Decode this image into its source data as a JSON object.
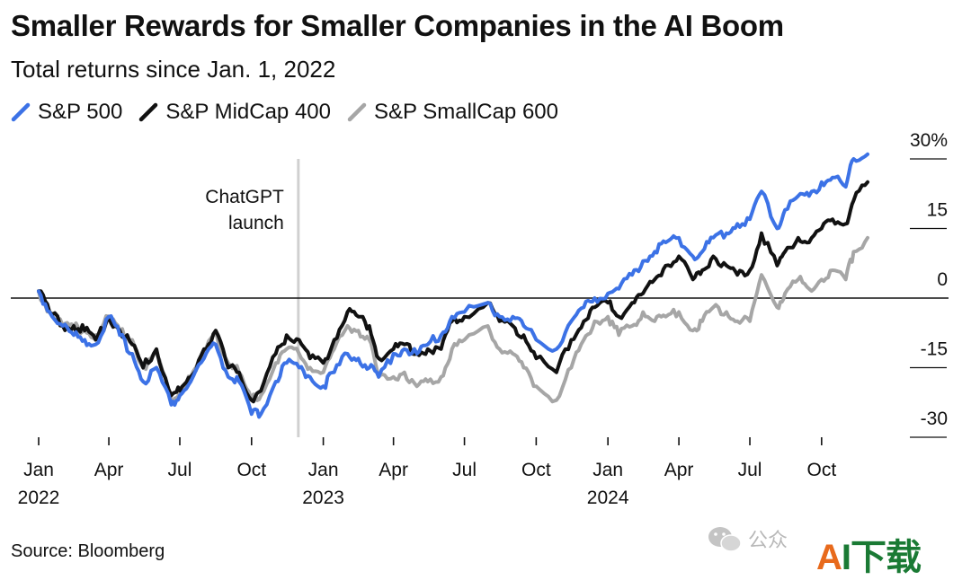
{
  "title": "Smaller Rewards for Smaller Companies in the AI Boom",
  "subtitle": "Total returns since Jan. 1, 2022",
  "source": "Source: Bloomberg",
  "watermark": {
    "account_text": "公众",
    "brand_a": "A",
    "brand_rest": "I下载"
  },
  "colors": {
    "sp500": "#3c72e6",
    "midcap": "#111111",
    "smallcap": "#a6a6a6",
    "ref": "#d0d0d0"
  },
  "chart_data": {
    "type": "line",
    "title": "Smaller Rewards for Smaller Companies in the AI Boom",
    "subtitle": "Total returns since Jan. 1, 2022",
    "ylabel": "",
    "y_unit": "%",
    "ylim": [
      -30,
      30
    ],
    "y_ticks": [
      30,
      15,
      0,
      -15,
      -30
    ],
    "y_tick_labels": [
      "30%",
      "15",
      "0",
      "-15",
      "-30"
    ],
    "x_range": [
      "2022-01-01",
      "2024-11-29"
    ],
    "x_ticks": [
      {
        "date": "2022-01-01",
        "label": "Jan",
        "year": "2022"
      },
      {
        "date": "2022-04-01",
        "label": "Apr",
        "year": ""
      },
      {
        "date": "2022-07-01",
        "label": "Jul",
        "year": ""
      },
      {
        "date": "2022-10-01",
        "label": "Oct",
        "year": ""
      },
      {
        "date": "2023-01-01",
        "label": "Jan",
        "year": "2023"
      },
      {
        "date": "2023-04-01",
        "label": "Apr",
        "year": ""
      },
      {
        "date": "2023-07-01",
        "label": "Jul",
        "year": ""
      },
      {
        "date": "2023-10-01",
        "label": "Oct",
        "year": ""
      },
      {
        "date": "2024-01-01",
        "label": "Jan",
        "year": "2024"
      },
      {
        "date": "2024-04-01",
        "label": "Apr",
        "year": ""
      },
      {
        "date": "2024-07-01",
        "label": "Jul",
        "year": ""
      },
      {
        "date": "2024-10-01",
        "label": "Oct",
        "year": ""
      }
    ],
    "annotations": [
      {
        "date": "2022-11-30",
        "text_lines": [
          "ChatGPT",
          "launch"
        ]
      }
    ],
    "legend_position": "top-left",
    "grid": false,
    "series": [
      {
        "name": "S&P 500",
        "color_key": "sp500",
        "points": [
          [
            "2022-01-01",
            1.5
          ],
          [
            "2022-01-15",
            -3
          ],
          [
            "2022-02-01",
            -6
          ],
          [
            "2022-02-15",
            -8
          ],
          [
            "2022-03-01",
            -9
          ],
          [
            "2022-03-15",
            -10
          ],
          [
            "2022-04-01",
            -4
          ],
          [
            "2022-04-15",
            -8
          ],
          [
            "2022-05-01",
            -12
          ],
          [
            "2022-05-15",
            -18
          ],
          [
            "2022-06-01",
            -15
          ],
          [
            "2022-06-20",
            -23
          ],
          [
            "2022-07-01",
            -21
          ],
          [
            "2022-07-15",
            -18
          ],
          [
            "2022-08-01",
            -13
          ],
          [
            "2022-08-16",
            -10
          ],
          [
            "2022-09-01",
            -17
          ],
          [
            "2022-09-15",
            -18
          ],
          [
            "2022-10-01",
            -25
          ],
          [
            "2022-10-13",
            -25
          ],
          [
            "2022-11-01",
            -18
          ],
          [
            "2022-11-15",
            -14
          ],
          [
            "2022-12-01",
            -15
          ],
          [
            "2022-12-15",
            -17
          ],
          [
            "2023-01-01",
            -19
          ],
          [
            "2023-01-15",
            -16
          ],
          [
            "2023-02-01",
            -12
          ],
          [
            "2023-02-15",
            -13
          ],
          [
            "2023-03-01",
            -15
          ],
          [
            "2023-03-13",
            -17
          ],
          [
            "2023-04-01",
            -12
          ],
          [
            "2023-04-15",
            -11
          ],
          [
            "2023-05-01",
            -12
          ],
          [
            "2023-05-15",
            -10
          ],
          [
            "2023-06-01",
            -8
          ],
          [
            "2023-06-15",
            -4
          ],
          [
            "2023-07-01",
            -3
          ],
          [
            "2023-07-31",
            -1
          ],
          [
            "2023-08-15",
            -4
          ],
          [
            "2023-09-01",
            -4
          ],
          [
            "2023-09-15",
            -6
          ],
          [
            "2023-10-01",
            -9
          ],
          [
            "2023-10-27",
            -11
          ],
          [
            "2023-11-15",
            -5
          ],
          [
            "2023-12-01",
            -2
          ],
          [
            "2023-12-15",
            0
          ],
          [
            "2024-01-01",
            1
          ],
          [
            "2024-01-15",
            2
          ],
          [
            "2024-02-01",
            5
          ],
          [
            "2024-02-15",
            8
          ],
          [
            "2024-03-01",
            10
          ],
          [
            "2024-03-15",
            12
          ],
          [
            "2024-04-01",
            13
          ],
          [
            "2024-04-19",
            9
          ],
          [
            "2024-05-01",
            10
          ],
          [
            "2024-05-15",
            13
          ],
          [
            "2024-06-01",
            14
          ],
          [
            "2024-06-15",
            16
          ],
          [
            "2024-07-01",
            17
          ],
          [
            "2024-07-16",
            23
          ],
          [
            "2024-08-05",
            15
          ],
          [
            "2024-08-15",
            19
          ],
          [
            "2024-09-01",
            22
          ],
          [
            "2024-09-15",
            22
          ],
          [
            "2024-10-01",
            25
          ],
          [
            "2024-10-15",
            26
          ],
          [
            "2024-11-01",
            24
          ],
          [
            "2024-11-11",
            30
          ],
          [
            "2024-11-29",
            31
          ]
        ]
      },
      {
        "name": "S&P MidCap 400",
        "color_key": "midcap",
        "points": [
          [
            "2022-01-01",
            1.5
          ],
          [
            "2022-01-15",
            -3
          ],
          [
            "2022-02-01",
            -6
          ],
          [
            "2022-02-15",
            -6
          ],
          [
            "2022-03-01",
            -7
          ],
          [
            "2022-03-15",
            -9
          ],
          [
            "2022-04-01",
            -4
          ],
          [
            "2022-04-15",
            -7
          ],
          [
            "2022-05-01",
            -10
          ],
          [
            "2022-05-15",
            -15
          ],
          [
            "2022-06-01",
            -11
          ],
          [
            "2022-06-20",
            -21
          ],
          [
            "2022-07-01",
            -20
          ],
          [
            "2022-07-15",
            -17
          ],
          [
            "2022-08-01",
            -11
          ],
          [
            "2022-08-16",
            -7
          ],
          [
            "2022-09-01",
            -15
          ],
          [
            "2022-09-15",
            -16
          ],
          [
            "2022-10-01",
            -22
          ],
          [
            "2022-10-13",
            -20
          ],
          [
            "2022-11-01",
            -12
          ],
          [
            "2022-11-15",
            -8
          ],
          [
            "2022-12-01",
            -9
          ],
          [
            "2022-12-15",
            -13
          ],
          [
            "2023-01-01",
            -14
          ],
          [
            "2023-01-15",
            -9
          ],
          [
            "2023-02-01",
            -3
          ],
          [
            "2023-02-15",
            -4
          ],
          [
            "2023-03-01",
            -6
          ],
          [
            "2023-03-13",
            -13
          ],
          [
            "2023-04-01",
            -11
          ],
          [
            "2023-04-15",
            -10
          ],
          [
            "2023-05-01",
            -12
          ],
          [
            "2023-05-15",
            -11
          ],
          [
            "2023-06-01",
            -11
          ],
          [
            "2023-06-15",
            -5
          ],
          [
            "2023-07-01",
            -4
          ],
          [
            "2023-07-31",
            -1
          ],
          [
            "2023-08-15",
            -5
          ],
          [
            "2023-09-01",
            -6
          ],
          [
            "2023-09-15",
            -8
          ],
          [
            "2023-10-01",
            -13
          ],
          [
            "2023-10-27",
            -16
          ],
          [
            "2023-11-15",
            -9
          ],
          [
            "2023-12-01",
            -5
          ],
          [
            "2023-12-15",
            -2
          ],
          [
            "2024-01-01",
            -1
          ],
          [
            "2024-01-15",
            -4
          ],
          [
            "2024-02-01",
            -1
          ],
          [
            "2024-02-15",
            1
          ],
          [
            "2024-03-01",
            4
          ],
          [
            "2024-03-15",
            7
          ],
          [
            "2024-04-01",
            9
          ],
          [
            "2024-04-19",
            4
          ],
          [
            "2024-05-01",
            6
          ],
          [
            "2024-05-15",
            9
          ],
          [
            "2024-06-01",
            7
          ],
          [
            "2024-06-15",
            5
          ],
          [
            "2024-07-01",
            6
          ],
          [
            "2024-07-16",
            14
          ],
          [
            "2024-08-05",
            7
          ],
          [
            "2024-08-15",
            10
          ],
          [
            "2024-09-01",
            13
          ],
          [
            "2024-09-15",
            12
          ],
          [
            "2024-10-01",
            15
          ],
          [
            "2024-10-15",
            17
          ],
          [
            "2024-11-01",
            16
          ],
          [
            "2024-11-11",
            21
          ],
          [
            "2024-11-29",
            25
          ]
        ]
      },
      {
        "name": "S&P SmallCap 600",
        "color_key": "smallcap",
        "points": [
          [
            "2022-01-01",
            1.5
          ],
          [
            "2022-01-15",
            -3
          ],
          [
            "2022-02-01",
            -6
          ],
          [
            "2022-02-15",
            -6
          ],
          [
            "2022-03-01",
            -7
          ],
          [
            "2022-03-15",
            -8
          ],
          [
            "2022-04-01",
            -4
          ],
          [
            "2022-04-15",
            -7
          ],
          [
            "2022-05-01",
            -9
          ],
          [
            "2022-05-15",
            -15
          ],
          [
            "2022-06-01",
            -12
          ],
          [
            "2022-06-20",
            -22
          ],
          [
            "2022-07-01",
            -20
          ],
          [
            "2022-07-15",
            -17
          ],
          [
            "2022-08-01",
            -12
          ],
          [
            "2022-08-16",
            -7
          ],
          [
            "2022-09-01",
            -14
          ],
          [
            "2022-09-15",
            -16
          ],
          [
            "2022-10-01",
            -22
          ],
          [
            "2022-10-13",
            -21
          ],
          [
            "2022-11-01",
            -14
          ],
          [
            "2022-11-15",
            -11
          ],
          [
            "2022-12-01",
            -12
          ],
          [
            "2022-12-15",
            -15
          ],
          [
            "2023-01-01",
            -16
          ],
          [
            "2023-01-15",
            -11
          ],
          [
            "2023-02-01",
            -6
          ],
          [
            "2023-02-15",
            -7
          ],
          [
            "2023-03-01",
            -9
          ],
          [
            "2023-03-13",
            -17
          ],
          [
            "2023-04-01",
            -17
          ],
          [
            "2023-04-15",
            -16
          ],
          [
            "2023-05-01",
            -19
          ],
          [
            "2023-05-15",
            -18
          ],
          [
            "2023-06-01",
            -17
          ],
          [
            "2023-06-15",
            -11
          ],
          [
            "2023-07-01",
            -9
          ],
          [
            "2023-07-31",
            -6
          ],
          [
            "2023-08-15",
            -11
          ],
          [
            "2023-09-01",
            -12
          ],
          [
            "2023-09-15",
            -15
          ],
          [
            "2023-10-01",
            -19
          ],
          [
            "2023-10-27",
            -22
          ],
          [
            "2023-11-15",
            -15
          ],
          [
            "2023-12-01",
            -9
          ],
          [
            "2023-12-15",
            -5
          ],
          [
            "2024-01-01",
            -4
          ],
          [
            "2024-01-15",
            -8
          ],
          [
            "2024-02-01",
            -6
          ],
          [
            "2024-02-15",
            -3
          ],
          [
            "2024-03-01",
            -5
          ],
          [
            "2024-03-15",
            -4
          ],
          [
            "2024-04-01",
            -3
          ],
          [
            "2024-04-19",
            -7
          ],
          [
            "2024-05-01",
            -5
          ],
          [
            "2024-05-15",
            -2
          ],
          [
            "2024-06-01",
            -3
          ],
          [
            "2024-06-15",
            -5
          ],
          [
            "2024-07-01",
            -5
          ],
          [
            "2024-07-16",
            5
          ],
          [
            "2024-08-05",
            -2
          ],
          [
            "2024-08-15",
            1
          ],
          [
            "2024-09-01",
            4
          ],
          [
            "2024-09-15",
            2
          ],
          [
            "2024-10-01",
            4
          ],
          [
            "2024-10-15",
            6
          ],
          [
            "2024-11-01",
            4
          ],
          [
            "2024-11-11",
            10
          ],
          [
            "2024-11-29",
            13
          ]
        ]
      }
    ]
  }
}
